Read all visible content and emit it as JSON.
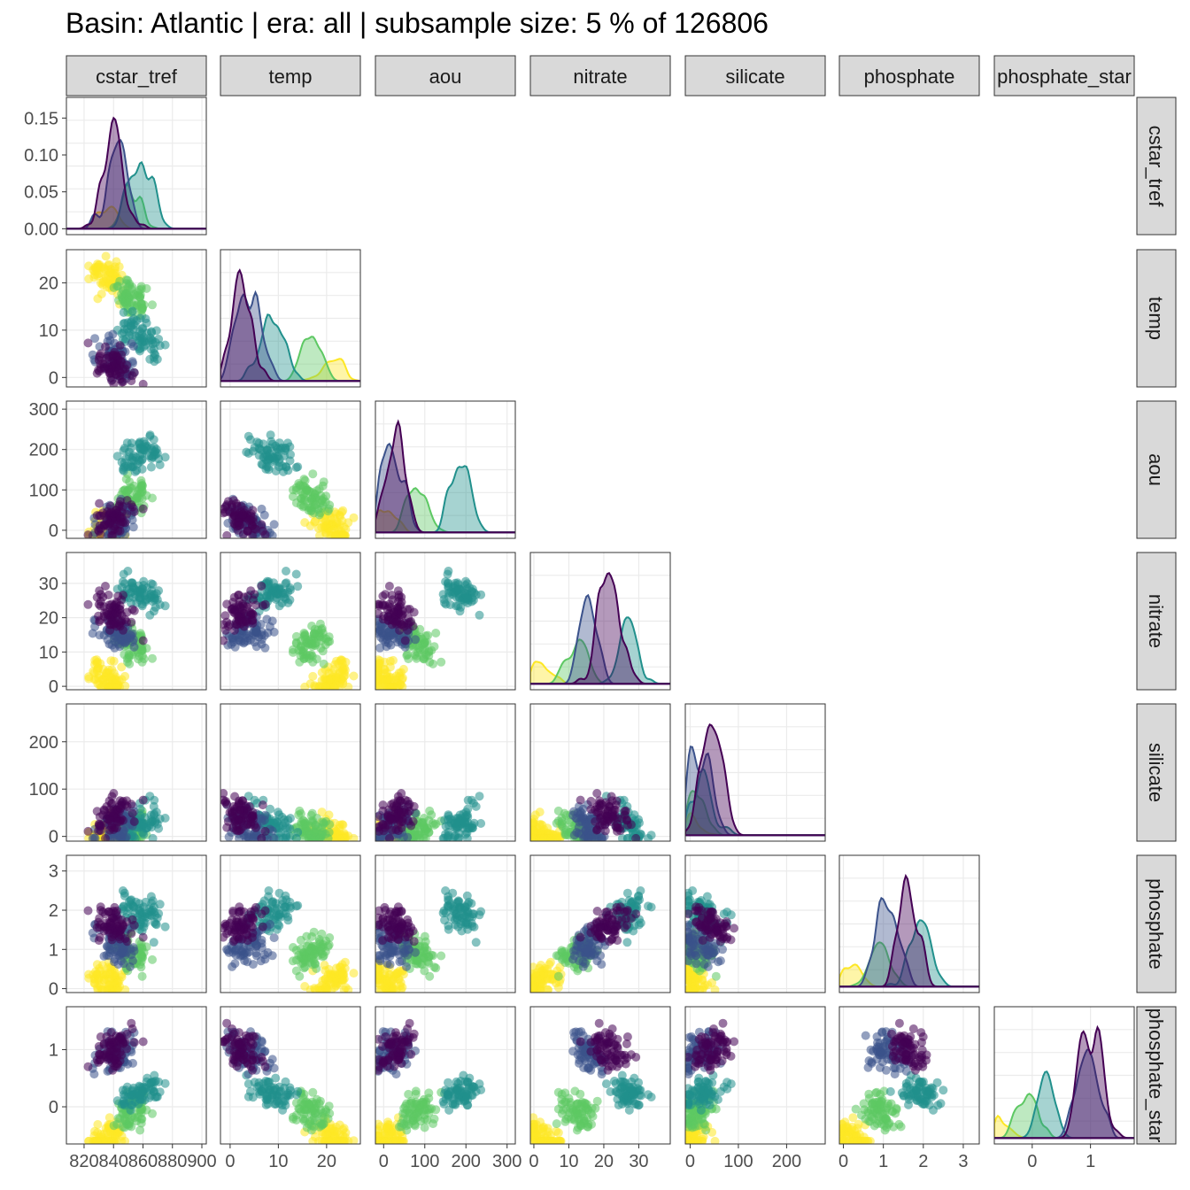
{
  "title": "Basin: Atlantic | era: all | subsample size: 5 % of 126806",
  "colors": {
    "palette": [
      "#440154",
      "#3b528b",
      "#21908c",
      "#5dc863",
      "#fde725"
    ],
    "strip_bg": "#d9d9d9",
    "grid": "#ebebeb"
  },
  "chart_data": {
    "type": "scatter",
    "layout": "pairs-matrix-lower-triangle",
    "diagonal": "density",
    "variables": [
      {
        "name": "cstar_tref",
        "ticks": [
          {
            "v": 820,
            "label": "820"
          },
          {
            "v": 840,
            "label": "840"
          },
          {
            "v": 860,
            "label": "860"
          },
          {
            "v": 880,
            "label": "880"
          },
          {
            "v": 900,
            "label": "900"
          }
        ],
        "range": [
          808,
          903
        ]
      },
      {
        "name": "temp",
        "ticks": [
          {
            "v": 0,
            "label": "0"
          },
          {
            "v": 10,
            "label": "10"
          },
          {
            "v": 20,
            "label": "20"
          }
        ],
        "range": [
          -2,
          27
        ]
      },
      {
        "name": "aou",
        "ticks": [
          {
            "v": 0,
            "label": "0"
          },
          {
            "v": 100,
            "label": "100"
          },
          {
            "v": 200,
            "label": "200"
          },
          {
            "v": 300,
            "label": "300"
          }
        ],
        "range": [
          -20,
          320
        ]
      },
      {
        "name": "nitrate",
        "ticks": [
          {
            "v": 0,
            "label": "0"
          },
          {
            "v": 10,
            "label": "10"
          },
          {
            "v": 20,
            "label": "20"
          },
          {
            "v": 30,
            "label": "30"
          }
        ],
        "range": [
          -1,
          39
        ]
      },
      {
        "name": "silicate",
        "ticks": [
          {
            "v": 0,
            "label": "0"
          },
          {
            "v": 100,
            "label": "100"
          },
          {
            "v": 200,
            "label": "200"
          }
        ],
        "range": [
          -10,
          280
        ]
      },
      {
        "name": "phosphate",
        "ticks": [
          {
            "v": 0,
            "label": "0"
          },
          {
            "v": 1,
            "label": "1"
          },
          {
            "v": 2,
            "label": "2"
          },
          {
            "v": 3,
            "label": "3"
          }
        ],
        "range": [
          -0.1,
          3.4
        ]
      },
      {
        "name": "phosphate_star",
        "ticks": [
          {
            "v": 0,
            "label": "0"
          },
          {
            "v": 1,
            "label": "1"
          }
        ],
        "range": [
          -0.65,
          1.75
        ]
      }
    ],
    "density_y_axis": {
      "ticks": [
        {
          "v": 0,
          "label": "0.00"
        },
        {
          "v": 0.05,
          "label": "0.05"
        },
        {
          "v": 0.1,
          "label": "0.10"
        },
        {
          "v": 0.15,
          "label": "0.15"
        }
      ],
      "range": [
        -0.008,
        0.178
      ]
    },
    "groups": [
      {
        "color": "#fde725",
        "center": {
          "cstar_tref": 836,
          "temp": 21,
          "aou": 12,
          "nitrate": 2,
          "silicate": 3,
          "phosphate": 0.2,
          "phosphate_star": -0.55
        }
      },
      {
        "color": "#5dc863",
        "center": {
          "cstar_tref": 852,
          "temp": 17,
          "aou": 80,
          "nitrate": 12,
          "silicate": 10,
          "phosphate": 0.9,
          "phosphate_star": -0.1
        }
      },
      {
        "color": "#21908c",
        "center": {
          "cstar_tref": 858,
          "temp": 9,
          "aou": 190,
          "nitrate": 27,
          "silicate": 25,
          "phosphate": 1.9,
          "phosphate_star": 0.25
        }
      },
      {
        "color": "#3b528b",
        "center": {
          "cstar_tref": 842,
          "temp": 4,
          "aou": 25,
          "nitrate": 16,
          "silicate": 20,
          "phosphate": 1.1,
          "phosphate_star": 0.95
        }
      },
      {
        "color": "#440154",
        "center": {
          "cstar_tref": 840,
          "temp": 2,
          "aou": 30,
          "nitrate": 22,
          "silicate": 45,
          "phosphate": 1.6,
          "phosphate_star": 1.0
        }
      }
    ]
  }
}
